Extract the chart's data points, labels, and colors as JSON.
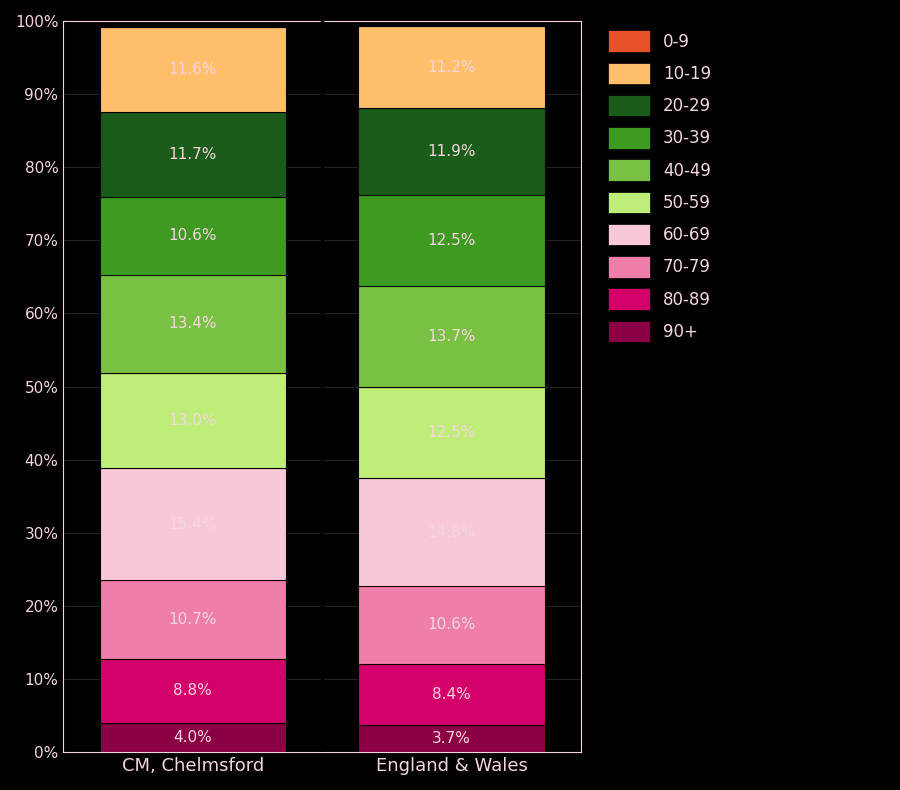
{
  "categories": [
    "CM, Chelmsford",
    "England & Wales"
  ],
  "age_groups": [
    "90+",
    "80-89",
    "70-79",
    "60-69",
    "50-59",
    "40-49",
    "30-39",
    "20-29",
    "10-19",
    "0-9"
  ],
  "values": {
    "CM, Chelmsford": [
      4.0,
      8.8,
      10.7,
      15.4,
      13.0,
      13.4,
      10.6,
      11.7,
      11.6,
      0.0
    ],
    "England & Wales": [
      3.7,
      8.4,
      10.6,
      14.8,
      12.5,
      13.7,
      12.5,
      11.9,
      11.2,
      0.0
    ]
  },
  "colors": {
    "0-9": "#E8522A",
    "10-19": "#FFBF6B",
    "20-29": "#1A5C1A",
    "30-39": "#3E9A20",
    "40-49": "#79C142",
    "50-59": "#BFED7A",
    "60-69": "#F9C8D8",
    "70-79": "#F07EAA",
    "80-89": "#D4006A",
    "90+": "#8B0045"
  },
  "legend_order": [
    "0-9",
    "10-19",
    "20-29",
    "30-39",
    "40-49",
    "50-59",
    "60-69",
    "70-79",
    "80-89",
    "90+"
  ],
  "chelmsford_values": {
    "90+": 4.0,
    "80-89": 8.8,
    "70-79": 10.7,
    "60-69": 15.4,
    "50-59": 13.0,
    "40-49": 13.4,
    "30-39": 10.6,
    "20-29": 11.7,
    "10-19": 11.6,
    "0-9": 0.0
  },
  "engwales_values": {
    "90+": 3.7,
    "80-89": 8.4,
    "70-79": 10.6,
    "60-69": 14.8,
    "50-59": 12.5,
    "40-49": 13.7,
    "30-39": 12.5,
    "20-29": 11.9,
    "10-19": 11.2,
    "0-9": 0.0
  },
  "labels": {
    "CM, Chelmsford": {
      "90+": "4.0%",
      "80-89": "8.8%",
      "70-79": "10.7%",
      "50-59": "13.0%",
      "40-49": "13.4%",
      "30-39": "10.6%",
      "20-29": "11.7%",
      "10-19": "11.6%"
    },
    "England & Wales": {
      "90+": "3.7%",
      "80-89": "8.4%",
      "70-79": "10.6%",
      "50-59": "12.5%",
      "40-49": "13.7%",
      "30-39": "12.5%",
      "20-29": "11.9%",
      "10-19": "11.2%"
    }
  },
  "background_color": "#000000",
  "text_color": "#F5D5E0",
  "bar_edge_color": "#000000",
  "figsize": [
    9.0,
    7.9
  ],
  "dpi": 100
}
